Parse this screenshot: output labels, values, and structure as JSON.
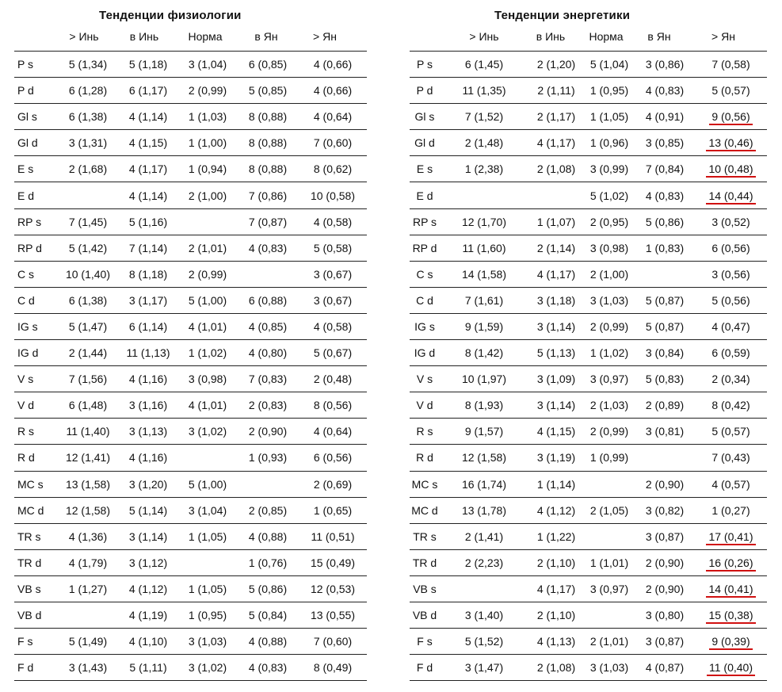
{
  "columns": [
    "> Инь",
    "в Инь",
    "Норма",
    "в Ян",
    "> Ян"
  ],
  "underline_color": "#d01010",
  "left": {
    "title": "Тенденции физиологии",
    "rows": [
      {
        "label": "P s",
        "cells": [
          "5 (1,34)",
          "5 (1,18)",
          "3 (1,04)",
          "6 (0,85)",
          "4 (0,66)"
        ]
      },
      {
        "label": "P d",
        "cells": [
          "6 (1,28)",
          "6 (1,17)",
          "2 (0,99)",
          "5 (0,85)",
          "4 (0,66)"
        ]
      },
      {
        "label": "Gl s",
        "cells": [
          "6 (1,38)",
          "4 (1,14)",
          "1 (1,03)",
          "8 (0,88)",
          "4 (0,64)"
        ]
      },
      {
        "label": "Gl d",
        "cells": [
          "3 (1,31)",
          "4 (1,15)",
          "1 (1,00)",
          "8 (0,88)",
          "7 (0,60)"
        ]
      },
      {
        "label": "E s",
        "cells": [
          "2 (1,68)",
          "4 (1,17)",
          "1 (0,94)",
          "8 (0,88)",
          "8 (0,62)"
        ]
      },
      {
        "label": "E d",
        "cells": [
          "",
          "4 (1,14)",
          "2 (1,00)",
          "7 (0,86)",
          "10 (0,58)"
        ]
      },
      {
        "label": "RP s",
        "cells": [
          "7 (1,45)",
          "5 (1,16)",
          "",
          "7 (0,87)",
          "4 (0,58)"
        ]
      },
      {
        "label": "RP d",
        "cells": [
          "5 (1,42)",
          "7 (1,14)",
          "2 (1,01)",
          "4 (0,83)",
          "5 (0,58)"
        ]
      },
      {
        "label": "C s",
        "cells": [
          "10 (1,40)",
          "8 (1,18)",
          "2 (0,99)",
          "",
          "3 (0,67)"
        ]
      },
      {
        "label": "C d",
        "cells": [
          "6 (1,38)",
          "3 (1,17)",
          "5 (1,00)",
          "6 (0,88)",
          "3 (0,67)"
        ]
      },
      {
        "label": "IG s",
        "cells": [
          "5 (1,47)",
          "6 (1,14)",
          "4 (1,01)",
          "4 (0,85)",
          "4 (0,58)"
        ]
      },
      {
        "label": "IG d",
        "cells": [
          "2 (1,44)",
          "11 (1,13)",
          "1 (1,02)",
          "4 (0,80)",
          "5 (0,67)"
        ]
      },
      {
        "label": "V s",
        "cells": [
          "7 (1,56)",
          "4 (1,16)",
          "3 (0,98)",
          "7 (0,83)",
          "2 (0,48)"
        ]
      },
      {
        "label": "V d",
        "cells": [
          "6 (1,48)",
          "3 (1,16)",
          "4 (1,01)",
          "2 (0,83)",
          "8 (0,56)"
        ]
      },
      {
        "label": "R s",
        "cells": [
          "11 (1,40)",
          "3 (1,13)",
          "3 (1,02)",
          "2 (0,90)",
          "4 (0,64)"
        ]
      },
      {
        "label": "R d",
        "cells": [
          "12 (1,41)",
          "4 (1,16)",
          "",
          "1 (0,93)",
          "6 (0,56)"
        ]
      },
      {
        "label": "MC s",
        "cells": [
          "13 (1,58)",
          "3 (1,20)",
          "5 (1,00)",
          "",
          "2 (0,69)"
        ]
      },
      {
        "label": "MC d",
        "cells": [
          "12 (1,58)",
          "5 (1,14)",
          "3 (1,04)",
          "2 (0,85)",
          "1 (0,65)"
        ]
      },
      {
        "label": "TR s",
        "cells": [
          "4 (1,36)",
          "3 (1,14)",
          "1 (1,05)",
          "4 (0,88)",
          "11 (0,51)"
        ]
      },
      {
        "label": "TR d",
        "cells": [
          "4 (1,79)",
          "3 (1,12)",
          "",
          "1 (0,76)",
          "15 (0,49)"
        ]
      },
      {
        "label": "VB s",
        "cells": [
          "1 (1,27)",
          "4 (1,12)",
          "1 (1,05)",
          "5 (0,86)",
          "12 (0,53)"
        ]
      },
      {
        "label": "VB d",
        "cells": [
          "",
          "4 (1,19)",
          "1 (0,95)",
          "5 (0,84)",
          "13 (0,55)"
        ]
      },
      {
        "label": "F s",
        "cells": [
          "5 (1,49)",
          "4 (1,10)",
          "3 (1,03)",
          "4 (0,88)",
          "7 (0,60)"
        ]
      },
      {
        "label": "F d",
        "cells": [
          "3 (1,43)",
          "5 (1,11)",
          "3 (1,02)",
          "4 (0,83)",
          "8 (0,49)"
        ]
      }
    ]
  },
  "right": {
    "title": "Тенденции энергетики",
    "rows": [
      {
        "label": "P s",
        "cells": [
          "6 (1,45)",
          "2 (1,20)",
          "5 (1,04)",
          "3 (0,86)",
          "7 (0,58)"
        ],
        "hl": false
      },
      {
        "label": "P d",
        "cells": [
          "11 (1,35)",
          "2 (1,11)",
          "1 (0,95)",
          "4 (0,83)",
          "5 (0,57)"
        ],
        "hl": false
      },
      {
        "label": "Gl s",
        "cells": [
          "7 (1,52)",
          "2 (1,17)",
          "1 (1,05)",
          "4 (0,91)",
          "9 (0,56)"
        ],
        "hl": true
      },
      {
        "label": "Gl d",
        "cells": [
          "2 (1,48)",
          "4 (1,17)",
          "1 (0,96)",
          "3 (0,85)",
          "13 (0,46)"
        ],
        "hl": true
      },
      {
        "label": "E s",
        "cells": [
          "1 (2,38)",
          "2 (1,08)",
          "3 (0,99)",
          "7 (0,84)",
          "10 (0,48)"
        ],
        "hl": true
      },
      {
        "label": "E d",
        "cells": [
          "",
          "",
          "5 (1,02)",
          "4 (0,83)",
          "14 (0,44)"
        ],
        "hl": true
      },
      {
        "label": "RP s",
        "cells": [
          "12 (1,70)",
          "1 (1,07)",
          "2 (0,95)",
          "5 (0,86)",
          "3 (0,52)"
        ],
        "hl": false
      },
      {
        "label": "RP d",
        "cells": [
          "11 (1,60)",
          "2 (1,14)",
          "3 (0,98)",
          "1 (0,83)",
          "6 (0,56)"
        ],
        "hl": false
      },
      {
        "label": "C s",
        "cells": [
          "14 (1,58)",
          "4 (1,17)",
          "2 (1,00)",
          "",
          "3 (0,56)"
        ],
        "hl": false
      },
      {
        "label": "C d",
        "cells": [
          "7 (1,61)",
          "3 (1,18)",
          "3 (1,03)",
          "5 (0,87)",
          "5 (0,56)"
        ],
        "hl": false
      },
      {
        "label": "IG s",
        "cells": [
          "9 (1,59)",
          "3 (1,14)",
          "2 (0,99)",
          "5 (0,87)",
          "4 (0,47)"
        ],
        "hl": false
      },
      {
        "label": "IG d",
        "cells": [
          "8 (1,42)",
          "5 (1,13)",
          "1 (1,02)",
          "3 (0,84)",
          "6 (0,59)"
        ],
        "hl": false
      },
      {
        "label": "V s",
        "cells": [
          "10 (1,97)",
          "3 (1,09)",
          "3 (0,97)",
          "5 (0,83)",
          "2 (0,34)"
        ],
        "hl": false
      },
      {
        "label": "V d",
        "cells": [
          "8 (1,93)",
          "3 (1,14)",
          "2 (1,03)",
          "2 (0,89)",
          "8 (0,42)"
        ],
        "hl": false
      },
      {
        "label": "R s",
        "cells": [
          "9 (1,57)",
          "4 (1,15)",
          "2 (0,99)",
          "3 (0,81)",
          "5 (0,57)"
        ],
        "hl": false
      },
      {
        "label": "R d",
        "cells": [
          "12 (1,58)",
          "3 (1,19)",
          "1 (0,99)",
          "",
          "7 (0,43)"
        ],
        "hl": false
      },
      {
        "label": "MC s",
        "cells": [
          "16 (1,74)",
          "1 (1,14)",
          "",
          "2 (0,90)",
          "4 (0,57)"
        ],
        "hl": false
      },
      {
        "label": "MC d",
        "cells": [
          "13 (1,78)",
          "4 (1,12)",
          "2 (1,05)",
          "3 (0,82)",
          "1 (0,27)"
        ],
        "hl": false
      },
      {
        "label": "TR s",
        "cells": [
          "2 (1,41)",
          "1 (1,22)",
          "",
          "3 (0,87)",
          "17 (0,41)"
        ],
        "hl": true
      },
      {
        "label": "TR d",
        "cells": [
          "2 (2,23)",
          "2 (1,10)",
          "1 (1,01)",
          "2 (0,90)",
          "16 (0,26)"
        ],
        "hl": true
      },
      {
        "label": "VB s",
        "cells": [
          "",
          "4 (1,17)",
          "3 (0,97)",
          "2 (0,90)",
          "14 (0,41)"
        ],
        "hl": true
      },
      {
        "label": "VB d",
        "cells": [
          "3 (1,40)",
          "2 (1,10)",
          "",
          "3 (0,80)",
          "15 (0,38)"
        ],
        "hl": true
      },
      {
        "label": "F s",
        "cells": [
          "5 (1,52)",
          "4 (1,13)",
          "2 (1,01)",
          "3 (0,87)",
          "9 (0,39)"
        ],
        "hl": true
      },
      {
        "label": "F d",
        "cells": [
          "3 (1,47)",
          "2 (1,08)",
          "3 (1,03)",
          "4 (0,87)",
          "11 (0,40)"
        ],
        "hl": true
      }
    ]
  }
}
